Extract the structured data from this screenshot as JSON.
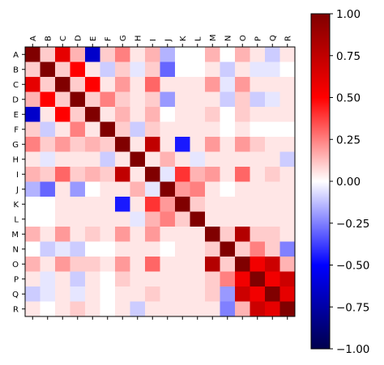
{
  "chart_data": {
    "type": "heatmap",
    "labels": [
      "A",
      "B",
      "C",
      "D",
      "E",
      "F",
      "G",
      "H",
      "I",
      "J",
      "K",
      "L",
      "M",
      "N",
      "O",
      "P",
      "Q",
      "R"
    ],
    "matrix": [
      [
        1.0,
        0.1,
        0.6,
        0.15,
        -0.65,
        0.1,
        0.25,
        0.05,
        0.15,
        -0.15,
        0.0,
        0.0,
        0.15,
        0.0,
        0.15,
        0.05,
        -0.1,
        0.05
      ],
      [
        0.1,
        1.0,
        0.1,
        0.5,
        0.05,
        -0.1,
        0.1,
        -0.05,
        0.1,
        -0.3,
        0.0,
        0.0,
        0.05,
        -0.1,
        0.05,
        -0.05,
        -0.05,
        0.0
      ],
      [
        0.6,
        0.1,
        1.0,
        0.1,
        0.5,
        0.05,
        0.2,
        0.05,
        0.3,
        0.05,
        0.05,
        0.05,
        0.2,
        -0.05,
        0.2,
        0.05,
        0.05,
        0.05
      ],
      [
        0.15,
        0.5,
        0.1,
        1.0,
        0.1,
        0.25,
        0.1,
        0.05,
        0.1,
        -0.2,
        0.05,
        0.05,
        0.05,
        -0.1,
        0.1,
        -0.1,
        -0.05,
        0.05
      ],
      [
        -0.65,
        0.05,
        0.5,
        0.1,
        1.0,
        0.05,
        0.15,
        0.05,
        0.15,
        0.0,
        0.05,
        0.05,
        0.1,
        0.0,
        0.1,
        0.05,
        0.05,
        0.05
      ],
      [
        0.1,
        -0.1,
        0.05,
        0.25,
        0.05,
        1.0,
        0.1,
        -0.1,
        0.1,
        0.05,
        0.05,
        0.05,
        0.05,
        0.0,
        0.05,
        0.0,
        0.0,
        0.0
      ],
      [
        0.25,
        0.1,
        0.2,
        0.1,
        0.15,
        0.1,
        1.0,
        0.05,
        0.75,
        0.05,
        -0.45,
        0.05,
        0.2,
        0.05,
        0.2,
        0.1,
        0.05,
        0.05
      ],
      [
        0.05,
        -0.05,
        0.05,
        0.05,
        0.05,
        -0.1,
        0.05,
        1.0,
        0.05,
        0.15,
        0.05,
        -0.05,
        0.05,
        0.05,
        0.05,
        0.05,
        0.05,
        -0.1
      ],
      [
        0.15,
        0.1,
        0.3,
        0.1,
        0.15,
        0.1,
        0.75,
        0.05,
        1.0,
        -0.05,
        0.4,
        0.15,
        0.2,
        0.05,
        0.3,
        0.05,
        0.1,
        0.05
      ],
      [
        -0.15,
        -0.3,
        0.05,
        -0.2,
        0.0,
        0.05,
        0.05,
        0.15,
        -0.05,
        1.0,
        0.2,
        0.25,
        0.05,
        0.0,
        0.05,
        0.05,
        0.05,
        0.05
      ],
      [
        0.0,
        0.0,
        0.05,
        0.05,
        0.05,
        0.05,
        -0.45,
        0.05,
        0.4,
        0.2,
        1.0,
        0.1,
        0.05,
        0.05,
        0.05,
        0.05,
        0.05,
        0.05
      ],
      [
        0.0,
        0.0,
        0.05,
        0.05,
        0.05,
        0.05,
        0.05,
        -0.05,
        0.15,
        0.25,
        0.1,
        1.0,
        0.05,
        0.05,
        0.05,
        0.05,
        0.05,
        0.05
      ],
      [
        0.15,
        0.05,
        0.2,
        0.05,
        0.1,
        0.05,
        0.2,
        0.05,
        0.2,
        0.05,
        0.05,
        0.05,
        1.0,
        0.1,
        0.8,
        0.1,
        0.1,
        0.05
      ],
      [
        0.0,
        -0.1,
        -0.05,
        -0.1,
        0.0,
        0.0,
        0.05,
        0.05,
        0.05,
        0.0,
        0.05,
        0.05,
        0.1,
        1.0,
        0.1,
        0.25,
        0.1,
        -0.25
      ],
      [
        0.15,
        0.05,
        0.2,
        0.1,
        0.1,
        0.05,
        0.2,
        0.05,
        0.3,
        0.05,
        0.05,
        0.05,
        0.8,
        0.1,
        1.0,
        0.55,
        0.7,
        0.15
      ],
      [
        0.05,
        -0.05,
        0.05,
        -0.1,
        0.05,
        0.0,
        0.1,
        0.05,
        0.05,
        0.05,
        0.05,
        0.05,
        0.1,
        0.25,
        0.55,
        1.0,
        0.55,
        0.7
      ],
      [
        -0.1,
        -0.05,
        0.05,
        -0.05,
        0.05,
        0.0,
        0.05,
        0.05,
        0.1,
        0.05,
        0.05,
        0.05,
        0.1,
        -0.2,
        0.7,
        0.55,
        1.0,
        0.6
      ],
      [
        0.05,
        0.0,
        0.05,
        0.1,
        0.05,
        0.0,
        0.05,
        -0.1,
        0.05,
        0.05,
        0.05,
        0.05,
        0.05,
        -0.25,
        0.15,
        0.7,
        0.6,
        1.0
      ]
    ],
    "colorbar": {
      "vmin": -1.0,
      "vmax": 1.0,
      "ticks": [
        "-1.00",
        "-0.75",
        "-0.50",
        "-0.25",
        "0.00",
        "0.25",
        "0.50",
        "0.75",
        "1.00"
      ],
      "colormap": "seismic"
    }
  }
}
